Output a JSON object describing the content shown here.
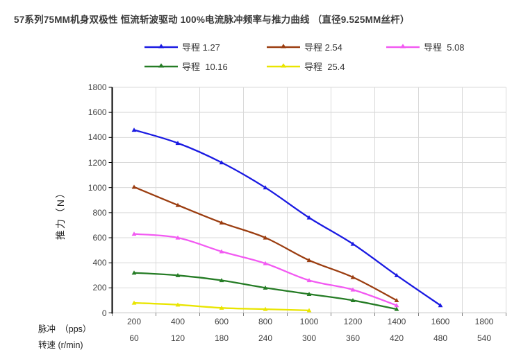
{
  "title": "57系列75MM机身双极性 恒流斩波驱动 100%电流脉冲频率与推力曲线 （直径9.525MM丝杆）",
  "axes": {
    "y_title": "推力（N）",
    "pulse_label": "脉冲　（pps）",
    "speed_label": "转速 (r/min)"
  },
  "colors": {
    "grid": "#d9d9d9",
    "y_axis_line": "#000000",
    "x_axis_line": "#bfbfbf",
    "tick": "#7f7f7f",
    "label_text": "#404040"
  },
  "chart_data": {
    "type": "line",
    "title": "57系列75MM机身双极性 恒流斩波驱动 100%电流脉冲频率与推力曲线 （直径9.525MM丝杆）",
    "xlabel_row1": "脉冲（pps）",
    "xlabel_row2": "转速 (r/min)",
    "ylabel": "推力（N）",
    "x_pps": [
      200,
      400,
      600,
      800,
      1000,
      1200,
      1400,
      1600,
      1800
    ],
    "x_rpm": [
      60,
      120,
      180,
      240,
      300,
      360,
      420,
      480,
      540
    ],
    "ylim": [
      0,
      1800
    ],
    "ytick_step": 200,
    "grid": true,
    "legend_position": "top",
    "marker": "triangle",
    "series": [
      {
        "name": "导程 1.27",
        "color": "#1a1ae2",
        "values": [
          1460,
          1355,
          1200,
          1000,
          760,
          550,
          300,
          60
        ]
      },
      {
        "name": "导程 2.54",
        "color": "#9b3d10",
        "values": [
          1005,
          860,
          720,
          600,
          420,
          285,
          100
        ]
      },
      {
        "name": "导程  5.08",
        "color": "#f25af2",
        "values": [
          630,
          600,
          490,
          395,
          260,
          185,
          60
        ]
      },
      {
        "name": "导程  10.16",
        "color": "#257c25",
        "values": [
          320,
          300,
          260,
          200,
          150,
          100,
          30
        ]
      },
      {
        "name": "导程  25.4",
        "color": "#e9e500",
        "values": [
          80,
          65,
          40,
          30,
          20
        ]
      }
    ]
  }
}
